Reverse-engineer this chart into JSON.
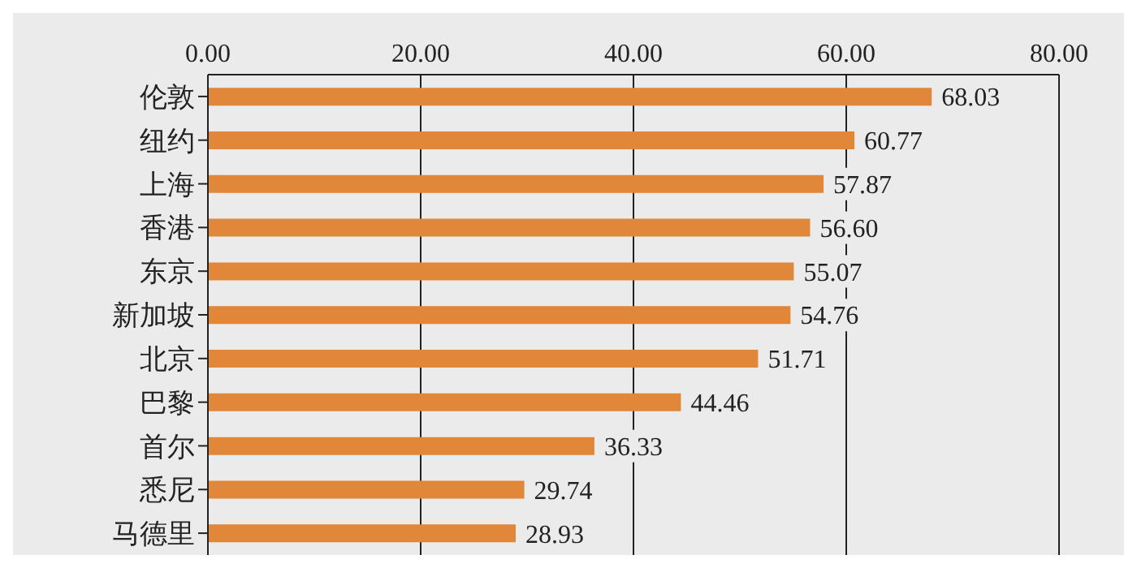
{
  "chart_data": {
    "type": "bar",
    "orientation": "horizontal",
    "categories": [
      "伦敦",
      "纽约",
      "上海",
      "香港",
      "东京",
      "新加坡",
      "北京",
      "巴黎",
      "首尔",
      "悉尼",
      "马德里"
    ],
    "values": [
      68.03,
      60.77,
      57.87,
      56.6,
      55.07,
      54.76,
      51.71,
      44.46,
      36.33,
      29.74,
      28.93
    ],
    "color": "#e0873a",
    "xlim": [
      0,
      80
    ],
    "xticks": [
      {
        "value": 0,
        "label": "0.00"
      },
      {
        "value": 20,
        "label": "20.00"
      },
      {
        "value": 40,
        "label": "40.00"
      },
      {
        "value": 60,
        "label": "60.00"
      },
      {
        "value": 80,
        "label": "80.00"
      }
    ],
    "value_labels": [
      "68.03",
      "60.77",
      "57.87",
      "56.60",
      "55.07",
      "54.76",
      "51.71",
      "44.46",
      "36.33",
      "29.74",
      "28.93"
    ],
    "grid": "x"
  }
}
